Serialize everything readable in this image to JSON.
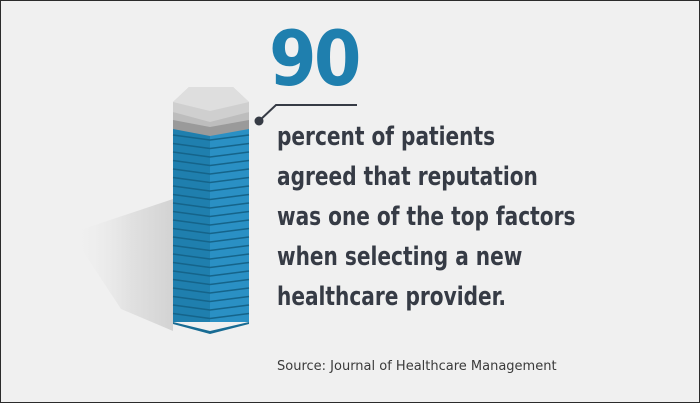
{
  "stat": {
    "value": "90",
    "lines": [
      "percent of patients",
      "agreed that reputation",
      "was one of the top factors",
      "when selecting a new",
      "healthcare provider."
    ]
  },
  "source": "Source: Journal of Healthcare Management",
  "colors": {
    "accent": "#1f7fae",
    "text": "#363b45",
    "background": "#f0f0f0"
  },
  "tower": {
    "stripes": 22
  }
}
